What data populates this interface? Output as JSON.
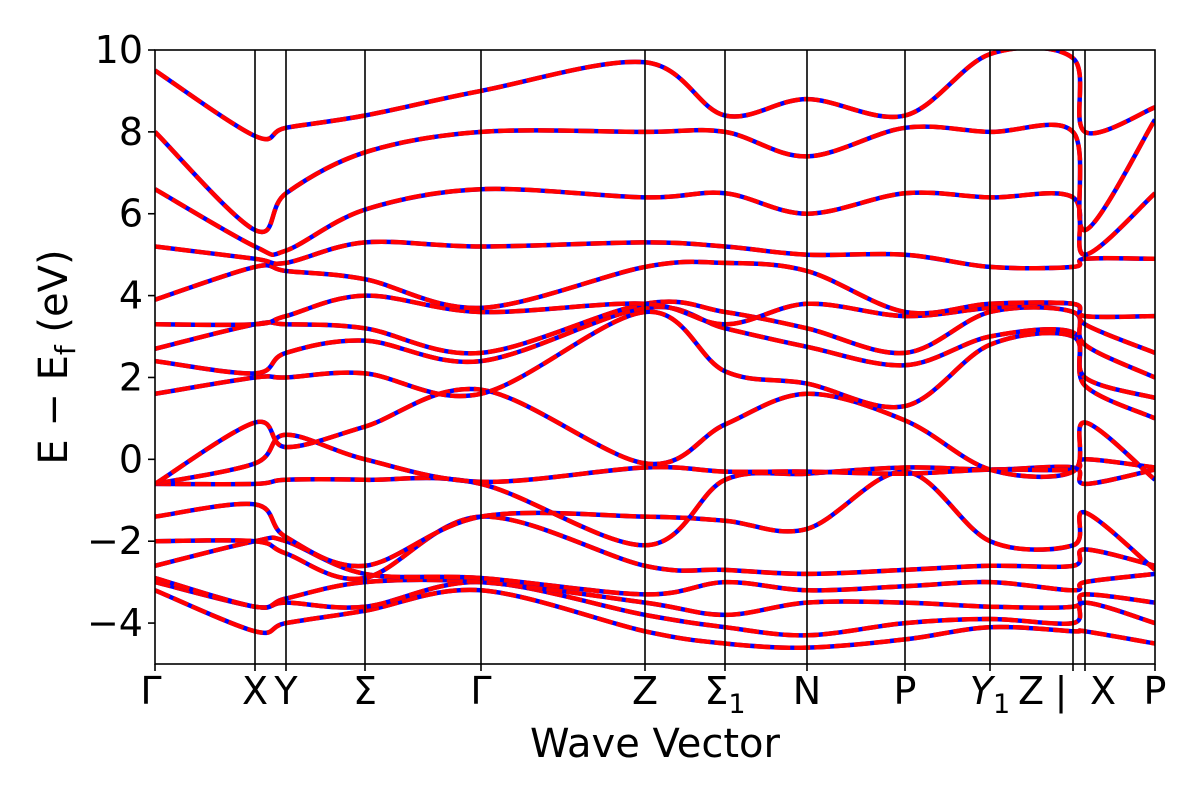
{
  "chart_data": {
    "type": "line",
    "xlabel": "Wave Vector",
    "ylabel": "E − E_f (eV)",
    "ylabel_parts": {
      "main": "E − E",
      "sub": "f",
      "unit": " (eV)"
    },
    "ylim": [
      -5,
      10
    ],
    "yticks": [
      {
        "value": -4,
        "label": "−4"
      },
      {
        "value": -2,
        "label": "−2"
      },
      {
        "value": 0,
        "label": "0"
      },
      {
        "value": 2,
        "label": "2"
      },
      {
        "value": 4,
        "label": "4"
      },
      {
        "value": 6,
        "label": "6"
      },
      {
        "value": 8,
        "label": "8"
      },
      {
        "value": 10,
        "label": "10"
      }
    ],
    "k_range": [
      0,
      10
    ],
    "high_symmetry_points": [
      {
        "k": 0.0,
        "label": "Γ"
      },
      {
        "k": 1.0,
        "label": "X"
      },
      {
        "k": 1.31,
        "label": "Y"
      },
      {
        "k": 2.1,
        "label": "Σ"
      },
      {
        "k": 3.26,
        "label": "Γ"
      },
      {
        "k": 4.9,
        "label": "Z"
      },
      {
        "k": 5.7,
        "label": "Σ",
        "sub": "1"
      },
      {
        "k": 6.52,
        "label": "N"
      },
      {
        "k": 7.5,
        "label": "P"
      },
      {
        "k": 8.35,
        "label": "Y",
        "sub": "1",
        "italic": true
      },
      {
        "k": 9.18,
        "label": "Z"
      },
      {
        "k": 9.18,
        "label": "|"
      },
      {
        "k": 9.3,
        "label": "X"
      },
      {
        "k": 10.0,
        "label": "P"
      }
    ],
    "series_styles": [
      {
        "color": "#0000ff",
        "style": "solid"
      },
      {
        "color": "#ff0000",
        "style": "dashed"
      }
    ],
    "bands": [
      [
        [
          0,
          -3.2
        ],
        [
          1.0,
          -4.2
        ],
        [
          1.31,
          -4.0
        ],
        [
          2.1,
          -3.7
        ],
        [
          3.26,
          -3.2
        ],
        [
          4.9,
          -4.2
        ],
        [
          5.7,
          -4.5
        ],
        [
          6.52,
          -4.6
        ],
        [
          7.5,
          -4.4
        ],
        [
          8.35,
          -4.1
        ],
        [
          9.18,
          -4.2
        ],
        [
          9.3,
          -4.2
        ],
        [
          10.0,
          -4.5
        ]
      ],
      [
        [
          0,
          -3.0
        ],
        [
          1.0,
          -3.6
        ],
        [
          1.31,
          -3.5
        ],
        [
          2.1,
          -3.6
        ],
        [
          3.26,
          -3.0
        ],
        [
          4.9,
          -3.8
        ],
        [
          5.7,
          -4.1
        ],
        [
          6.52,
          -4.3
        ],
        [
          7.5,
          -4.0
        ],
        [
          8.35,
          -3.9
        ],
        [
          9.18,
          -4.0
        ],
        [
          9.3,
          -3.5
        ],
        [
          10.0,
          -4.0
        ]
      ],
      [
        [
          0,
          -2.9
        ],
        [
          1.0,
          -3.6
        ],
        [
          1.31,
          -3.4
        ],
        [
          2.1,
          -3.0
        ],
        [
          3.26,
          -3.0
        ],
        [
          4.9,
          -3.5
        ],
        [
          5.7,
          -3.8
        ],
        [
          6.52,
          -3.5
        ],
        [
          7.5,
          -3.5
        ],
        [
          8.35,
          -3.6
        ],
        [
          9.18,
          -3.6
        ],
        [
          9.3,
          -3.3
        ],
        [
          10.0,
          -3.5
        ]
      ],
      [
        [
          0,
          -2.6
        ],
        [
          1.0,
          -2.0
        ],
        [
          1.31,
          -2.0
        ],
        [
          2.1,
          -2.8
        ],
        [
          3.26,
          -2.9
        ],
        [
          4.9,
          -3.3
        ],
        [
          5.7,
          -3.0
        ],
        [
          6.52,
          -3.2
        ],
        [
          7.5,
          -3.1
        ],
        [
          8.35,
          -3.0
        ],
        [
          9.18,
          -3.2
        ],
        [
          9.3,
          -3.0
        ],
        [
          10.0,
          -2.8
        ]
      ],
      [
        [
          0,
          -2.0
        ],
        [
          1.0,
          -2.0
        ],
        [
          1.31,
          -2.3
        ],
        [
          2.1,
          -2.9
        ],
        [
          3.26,
          -1.4
        ],
        [
          4.9,
          -2.6
        ],
        [
          5.7,
          -2.7
        ],
        [
          6.52,
          -2.8
        ],
        [
          7.5,
          -2.7
        ],
        [
          8.35,
          -2.6
        ],
        [
          9.18,
          -2.6
        ],
        [
          9.3,
          -2.2
        ],
        [
          10.0,
          -2.6
        ]
      ],
      [
        [
          0,
          -1.4
        ],
        [
          1.0,
          -1.1
        ],
        [
          1.31,
          -1.9
        ],
        [
          2.1,
          -2.6
        ],
        [
          3.26,
          -1.4
        ],
        [
          4.9,
          -1.4
        ],
        [
          5.7,
          -1.5
        ],
        [
          6.52,
          -1.7
        ],
        [
          7.5,
          -0.3
        ],
        [
          8.35,
          -2.0
        ],
        [
          9.18,
          -2.1
        ],
        [
          9.3,
          -1.3
        ],
        [
          10.0,
          -2.7
        ]
      ],
      [
        [
          0,
          -0.6
        ],
        [
          1.0,
          -0.6
        ],
        [
          1.31,
          -0.5
        ],
        [
          2.1,
          -0.5
        ],
        [
          3.26,
          -0.6
        ],
        [
          4.9,
          -2.1
        ],
        [
          5.7,
          -0.5
        ],
        [
          6.52,
          -0.35
        ],
        [
          7.5,
          -0.2
        ],
        [
          8.35,
          -0.25
        ],
        [
          9.18,
          -0.2
        ],
        [
          9.3,
          -0.6
        ],
        [
          10.0,
          -0.25
        ]
      ],
      [
        [
          0,
          -0.6
        ],
        [
          1.0,
          -0.1
        ],
        [
          1.31,
          0.6
        ],
        [
          2.1,
          0.0
        ],
        [
          3.26,
          -0.55
        ],
        [
          4.9,
          -0.2
        ],
        [
          5.7,
          -0.3
        ],
        [
          6.52,
          -0.3
        ],
        [
          7.5,
          -0.35
        ],
        [
          8.35,
          -0.25
        ],
        [
          9.18,
          -0.25
        ],
        [
          9.3,
          0.0
        ],
        [
          10.0,
          -0.2
        ]
      ],
      [
        [
          0,
          -0.6
        ],
        [
          1.0,
          0.9
        ],
        [
          1.31,
          0.3
        ],
        [
          2.1,
          0.8
        ],
        [
          3.26,
          1.7
        ],
        [
          4.9,
          -0.1
        ],
        [
          5.7,
          0.85
        ],
        [
          6.52,
          1.6
        ],
        [
          7.5,
          0.95
        ],
        [
          8.35,
          -0.25
        ],
        [
          9.18,
          -0.3
        ],
        [
          9.3,
          0.9
        ],
        [
          10.0,
          -0.5
        ]
      ],
      [
        [
          0,
          1.6
        ],
        [
          1.0,
          2.0
        ],
        [
          1.31,
          2.0
        ],
        [
          2.1,
          2.1
        ],
        [
          3.26,
          1.6
        ],
        [
          4.9,
          3.6
        ],
        [
          5.7,
          2.15
        ],
        [
          6.52,
          1.85
        ],
        [
          7.5,
          1.3
        ],
        [
          8.35,
          2.8
        ],
        [
          9.18,
          3.0
        ],
        [
          9.3,
          1.8
        ],
        [
          10.0,
          1.0
        ]
      ],
      [
        [
          0,
          2.4
        ],
        [
          1.0,
          2.1
        ],
        [
          1.31,
          2.6
        ],
        [
          2.1,
          2.9
        ],
        [
          3.26,
          2.4
        ],
        [
          4.9,
          3.7
        ],
        [
          5.7,
          3.2
        ],
        [
          6.52,
          2.75
        ],
        [
          7.5,
          2.3
        ],
        [
          8.35,
          3.0
        ],
        [
          9.18,
          3.1
        ],
        [
          9.3,
          2.0
        ],
        [
          10.0,
          1.5
        ]
      ],
      [
        [
          0,
          2.7
        ],
        [
          1.0,
          3.3
        ],
        [
          1.31,
          3.3
        ],
        [
          2.1,
          3.2
        ],
        [
          3.26,
          2.6
        ],
        [
          4.9,
          3.8
        ],
        [
          5.7,
          3.6
        ],
        [
          6.52,
          3.2
        ],
        [
          7.5,
          2.6
        ],
        [
          8.35,
          3.6
        ],
        [
          9.18,
          3.6
        ],
        [
          9.3,
          2.8
        ],
        [
          10.0,
          2.0
        ]
      ],
      [
        [
          0,
          3.3
        ],
        [
          1.0,
          3.3
        ],
        [
          1.31,
          3.5
        ],
        [
          2.1,
          4.0
        ],
        [
          3.26,
          3.6
        ],
        [
          4.9,
          3.8
        ],
        [
          5.7,
          3.3
        ],
        [
          6.52,
          3.8
        ],
        [
          7.5,
          3.5
        ],
        [
          8.35,
          3.7
        ],
        [
          9.18,
          3.8
        ],
        [
          9.3,
          3.3
        ],
        [
          10.0,
          2.6
        ]
      ],
      [
        [
          0,
          3.9
        ],
        [
          1.0,
          4.7
        ],
        [
          1.31,
          4.6
        ],
        [
          2.1,
          4.4
        ],
        [
          3.26,
          3.7
        ],
        [
          4.9,
          4.7
        ],
        [
          5.7,
          4.8
        ],
        [
          6.52,
          4.6
        ],
        [
          7.5,
          3.6
        ],
        [
          8.35,
          3.8
        ],
        [
          9.18,
          3.8
        ],
        [
          9.3,
          3.5
        ],
        [
          10.0,
          3.5
        ]
      ],
      [
        [
          0,
          5.2
        ],
        [
          1.0,
          4.9
        ],
        [
          1.31,
          4.8
        ],
        [
          2.1,
          5.3
        ],
        [
          3.26,
          5.2
        ],
        [
          4.9,
          5.3
        ],
        [
          5.7,
          5.2
        ],
        [
          6.52,
          5.0
        ],
        [
          7.5,
          5.0
        ],
        [
          8.35,
          4.7
        ],
        [
          9.18,
          4.7
        ],
        [
          9.3,
          4.9
        ],
        [
          10.0,
          4.9
        ]
      ],
      [
        [
          0,
          6.6
        ],
        [
          1.0,
          5.2
        ],
        [
          1.31,
          5.1
        ],
        [
          2.1,
          6.1
        ],
        [
          3.26,
          6.6
        ],
        [
          4.9,
          6.4
        ],
        [
          5.7,
          6.5
        ],
        [
          6.52,
          6.0
        ],
        [
          7.5,
          6.5
        ],
        [
          8.35,
          6.4
        ],
        [
          9.18,
          6.4
        ],
        [
          9.3,
          5.0
        ],
        [
          10.0,
          6.5
        ]
      ],
      [
        [
          0,
          8.0
        ],
        [
          1.0,
          5.6
        ],
        [
          1.31,
          6.5
        ],
        [
          2.1,
          7.5
        ],
        [
          3.26,
          8.0
        ],
        [
          4.9,
          8.0
        ],
        [
          5.7,
          8.0
        ],
        [
          6.52,
          7.4
        ],
        [
          7.5,
          8.1
        ],
        [
          8.35,
          8.0
        ],
        [
          9.18,
          8.0
        ],
        [
          9.3,
          5.6
        ],
        [
          10.0,
          8.3
        ]
      ],
      [
        [
          0,
          9.5
        ],
        [
          1.0,
          7.9
        ],
        [
          1.31,
          8.1
        ],
        [
          2.1,
          8.4
        ],
        [
          3.26,
          9.0
        ],
        [
          4.9,
          9.7
        ],
        [
          5.7,
          8.4
        ],
        [
          6.52,
          8.8
        ],
        [
          7.5,
          8.4
        ],
        [
          8.35,
          9.9
        ],
        [
          9.18,
          9.8
        ],
        [
          9.3,
          8.0
        ],
        [
          10.0,
          8.6
        ]
      ]
    ]
  }
}
